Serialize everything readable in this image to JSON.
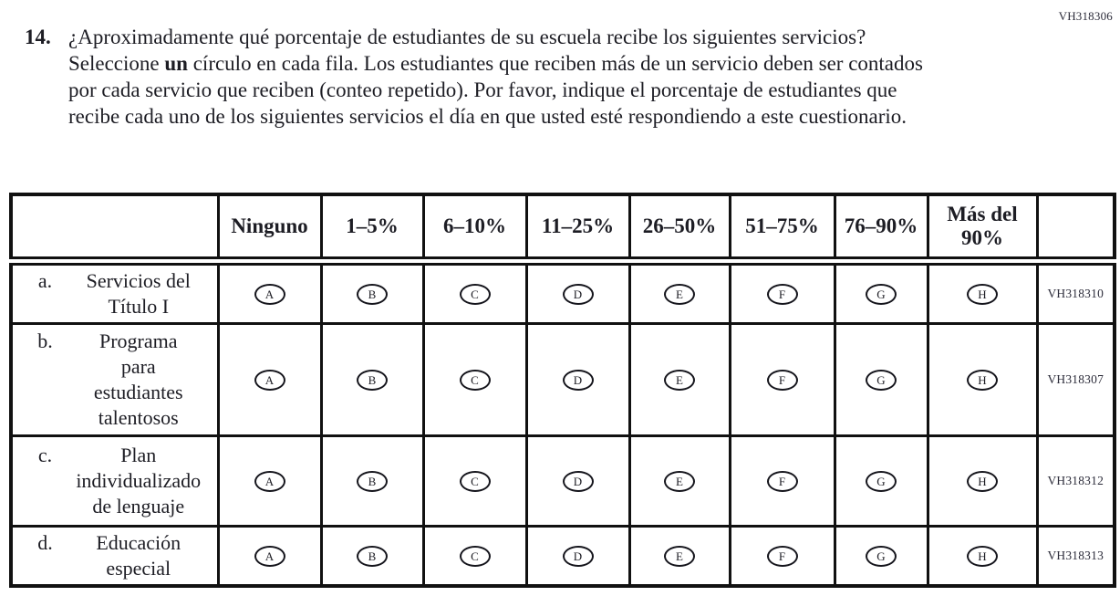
{
  "doc_code": "VH318306",
  "question": {
    "number": "14.",
    "text_before_bold": "¿Aproximadamente qué porcentaje de estudiantes de su escuela recibe los siguientes servicios? Seleccione ",
    "text_bold": "un",
    "text_after_bold": " círculo en cada fila. Los estudiantes que reciben más de un servicio deben ser contados por cada servicio que reciben (conteo repetido). Por favor, indique el porcentaje de estudiantes que recibe cada uno de los siguientes servicios el día en que usted esté respondiendo a este cuestionario."
  },
  "table": {
    "column_headers": [
      "Ninguno",
      "1–5%",
      "6–10%",
      "11–25%",
      "26–50%",
      "51–75%",
      "76–90%",
      "Más del 90%"
    ],
    "option_letters": [
      "A",
      "B",
      "C",
      "D",
      "E",
      "F",
      "G",
      "H"
    ],
    "rows": [
      {
        "letter": "a.",
        "label_lines": [
          "Servicios del",
          "Título I"
        ],
        "code": "VH318310"
      },
      {
        "letter": "b.",
        "label_lines": [
          "Programa",
          "para",
          "estudiantes",
          "talentosos"
        ],
        "code": "VH318307"
      },
      {
        "letter": "c.",
        "label_lines": [
          "Plan",
          "individualizado",
          "de lenguaje"
        ],
        "code": "VH318312"
      },
      {
        "letter": "d.",
        "label_lines": [
          "Educación",
          "especial"
        ],
        "code": "VH318313"
      }
    ]
  },
  "colors": {
    "text": "#1d1d24",
    "border": "#111111",
    "code_text": "#2c2c3a"
  }
}
